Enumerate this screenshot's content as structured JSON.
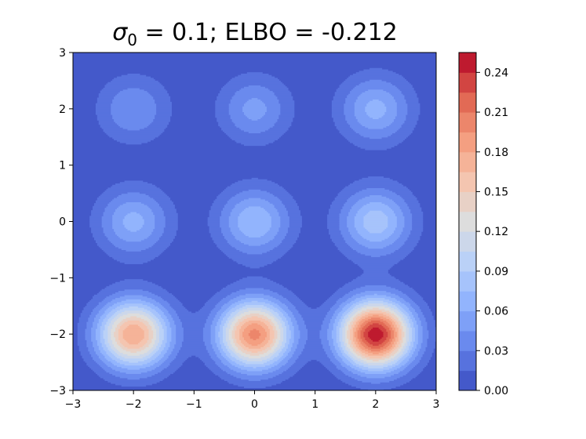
{
  "title": {
    "symbol": "σ",
    "subscript": "0",
    "text": " = 0.1; ELBO = -0.212"
  },
  "chart_data": {
    "type": "contourf",
    "title": "σ0 = 0.1; ELBO = -0.212",
    "xlabel": "",
    "ylabel": "",
    "xlim": [
      -3,
      3
    ],
    "ylim": [
      -3,
      3
    ],
    "x_ticks": [
      "−3",
      "−2",
      "−1",
      "0",
      "1",
      "2",
      "3"
    ],
    "y_ticks": [
      "−3",
      "−2",
      "−1",
      "0",
      "1",
      "2",
      "3"
    ],
    "grid": false,
    "colormap": "coolwarm",
    "colorbar": {
      "min": 0.0,
      "max": 0.255,
      "level_step": 0.015,
      "ticks": [
        "0.00",
        "0.03",
        "0.06",
        "0.09",
        "0.12",
        "0.15",
        "0.18",
        "0.21",
        "0.24"
      ]
    },
    "components": [
      {
        "x": -2,
        "y": 2,
        "peak": 0.045
      },
      {
        "x": 0,
        "y": 2,
        "peak": 0.05
      },
      {
        "x": 2,
        "y": 2,
        "peak": 0.065
      },
      {
        "x": -2,
        "y": 0,
        "peak": 0.065
      },
      {
        "x": 0,
        "y": 0,
        "peak": 0.075
      },
      {
        "x": 2,
        "y": 0,
        "peak": 0.085
      },
      {
        "x": -2,
        "y": -2,
        "peak": 0.18
      },
      {
        "x": 0,
        "y": -2,
        "peak": 0.2
      },
      {
        "x": 2,
        "y": -2,
        "peak": 0.25
      }
    ]
  }
}
